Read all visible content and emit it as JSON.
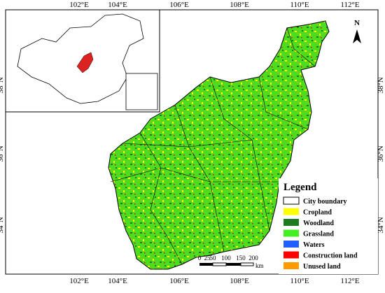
{
  "map": {
    "longitude_labels": [
      "102°E",
      "104°E",
      "106°E",
      "108°E",
      "110°E",
      "112°E"
    ],
    "latitude_labels": [
      "38°N",
      "36°N",
      "34°N"
    ],
    "north_label": "N",
    "legend": {
      "title": "Legend",
      "items": [
        {
          "label": "City boundary",
          "color": "#ffffff"
        },
        {
          "label": "Cropland",
          "color": "#ffff00"
        },
        {
          "label": "Woodland",
          "color": "#1e7a1e"
        },
        {
          "label": "Grassland",
          "color": "#44ee22"
        },
        {
          "label": "Waters",
          "color": "#1f5fff"
        },
        {
          "label": "Construction land",
          "color": "#ff0000"
        },
        {
          "label": "Unused land",
          "color": "#ff9900"
        }
      ]
    },
    "scale_bar": {
      "labels": [
        "0",
        "25",
        "50",
        "100",
        "150",
        "200"
      ],
      "unit": "km"
    }
  }
}
